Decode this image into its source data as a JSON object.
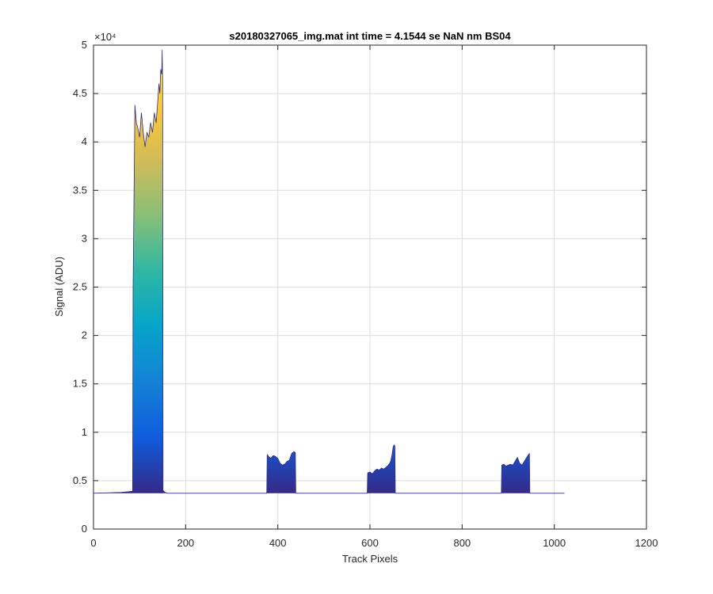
{
  "chart_data": {
    "type": "area",
    "title": "s20180327065_img.mat int time = 4.1544 se  NaN nm BS04",
    "xlabel": "Track Pixels",
    "ylabel": "Signal (ADU)",
    "y_exponent_label": "×10⁴",
    "xlim": [
      0,
      1200
    ],
    "ylim": [
      0,
      5
    ],
    "xticks": [
      0,
      200,
      400,
      600,
      800,
      1000,
      1200
    ],
    "yticks": [
      0,
      0.5,
      1,
      1.5,
      2,
      2.5,
      3,
      3.5,
      4,
      4.5,
      5
    ],
    "xtick_labels": [
      "0",
      "200",
      "400",
      "600",
      "800",
      "1000",
      "1200"
    ],
    "ytick_labels": [
      "0",
      "0.5",
      "1",
      "1.5",
      "2",
      "2.5",
      "3",
      "3.5",
      "4",
      "4.5",
      "5"
    ],
    "grid": true,
    "baseline": 0.37,
    "colormap": [
      "#352a87",
      "#0f5cdd",
      "#1481d6",
      "#06a4ca",
      "#2eb7a4",
      "#87bf77",
      "#d1bb59",
      "#fec832",
      "#f9fb0e"
    ],
    "series": [
      {
        "x": [
          0,
          60,
          85,
          86,
          90,
          93,
          96,
          100,
          104,
          108,
          112,
          116,
          120,
          124,
          128,
          132,
          136,
          140,
          142,
          144,
          146,
          148,
          149,
          150,
          151,
          155,
          160,
          200,
          300,
          376,
          377,
          380,
          385,
          390,
          395,
          400,
          405,
          410,
          415,
          420,
          425,
          430,
          435,
          438,
          439,
          450,
          500,
          594,
          595,
          600,
          605,
          610,
          615,
          620,
          625,
          630,
          635,
          640,
          645,
          648,
          650,
          652,
          654,
          655,
          660,
          700,
          800,
          885,
          886,
          890,
          895,
          900,
          905,
          910,
          915,
          920,
          925,
          930,
          935,
          940,
          944,
          946,
          947,
          950,
          1000,
          1022
        ],
        "y": [
          0.37,
          0.38,
          0.39,
          2.5,
          4.38,
          4.2,
          4.15,
          4.05,
          4.3,
          4.1,
          3.95,
          4.1,
          4.05,
          4.2,
          4.1,
          4.3,
          4.2,
          4.45,
          4.6,
          4.5,
          4.75,
          4.7,
          4.95,
          4.6,
          0.4,
          0.38,
          0.37,
          0.37,
          0.37,
          0.37,
          0.77,
          0.75,
          0.73,
          0.76,
          0.75,
          0.73,
          0.68,
          0.66,
          0.67,
          0.7,
          0.71,
          0.78,
          0.8,
          0.79,
          0.37,
          0.37,
          0.37,
          0.37,
          0.58,
          0.59,
          0.57,
          0.6,
          0.62,
          0.61,
          0.63,
          0.62,
          0.64,
          0.66,
          0.7,
          0.77,
          0.84,
          0.87,
          0.86,
          0.37,
          0.37,
          0.37,
          0.37,
          0.37,
          0.66,
          0.67,
          0.65,
          0.66,
          0.67,
          0.66,
          0.7,
          0.74,
          0.68,
          0.66,
          0.7,
          0.74,
          0.77,
          0.78,
          0.37,
          0.37,
          0.37,
          0.37
        ]
      }
    ]
  }
}
